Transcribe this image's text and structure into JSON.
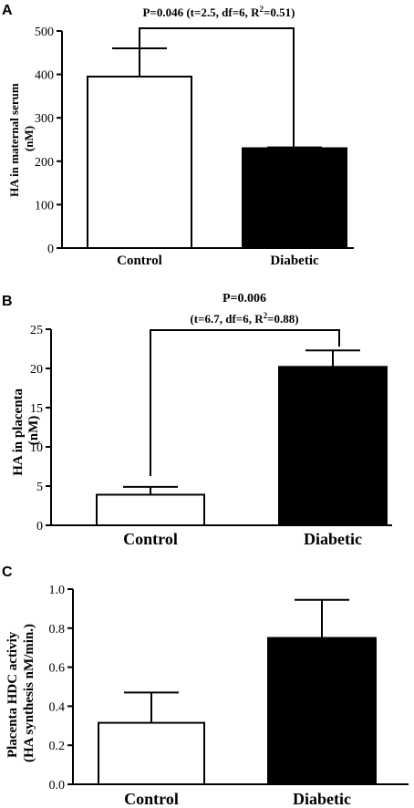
{
  "chart_data": [
    {
      "type": "bar",
      "panel": "A",
      "categories": [
        "Control",
        "Diabetic"
      ],
      "values": [
        395,
        230
      ],
      "errors": [
        65,
        2
      ],
      "ylabel_line1": "HA in maternal serum",
      "ylabel_line2": "(nM)",
      "ylim": [
        0,
        500
      ],
      "yticks": [
        0,
        100,
        200,
        300,
        400,
        500
      ],
      "fill_colors": [
        "#ffffff",
        "#000000"
      ],
      "stat_line1": "P=0.046 (t=2.5, df=6, R",
      "stat_sup": "2",
      "stat_line1_end": "=0.51)",
      "stat_line2": ""
    },
    {
      "type": "bar",
      "panel": "B",
      "categories": [
        "Control",
        "Diabetic"
      ],
      "values": [
        3.9,
        20.2
      ],
      "errors": [
        1.0,
        2.1
      ],
      "ylabel_line1": "HA in placenta",
      "ylabel_line2": "(nM)",
      "ylim": [
        0,
        25
      ],
      "yticks": [
        0,
        5,
        10,
        15,
        20,
        25
      ],
      "fill_colors": [
        "#ffffff",
        "#000000"
      ],
      "stat_header": "P=0.006",
      "stat_line1": "(t=6.7, df=6, R",
      "stat_sup": "2",
      "stat_line1_end": "=0.88)"
    },
    {
      "type": "bar",
      "panel": "C",
      "categories": [
        "Control",
        "Diabetic"
      ],
      "values": [
        0.315,
        0.75
      ],
      "errors": [
        0.155,
        0.195
      ],
      "ylabel_line1": "Placenta HDC activiy",
      "ylabel_line2": "(HA synthesis nM/min.)",
      "ylim": [
        0,
        1.0
      ],
      "yticks": [
        "0.0",
        "0.2",
        "0.4",
        "0.6",
        "0.8",
        "1.0"
      ],
      "fill_colors": [
        "#ffffff",
        "#000000"
      ]
    }
  ]
}
